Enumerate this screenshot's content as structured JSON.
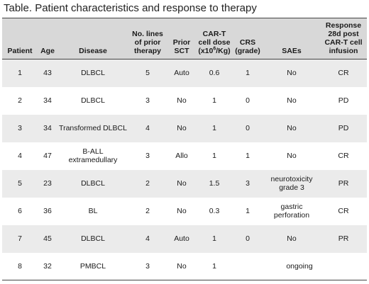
{
  "title": "Table. Patient characteristics and response to therapy",
  "headers": {
    "patient": "Patient",
    "age": "Age",
    "disease": "Disease",
    "lines": "No. lines of prior therapy",
    "prior_sct": "Prior SCT",
    "dose_pre": "CAR-T cell  dose (x10",
    "dose_sup": "6",
    "dose_post": "/Kg)",
    "crs": "CRS (grade)",
    "saes": "SAEs",
    "response": "Response 28d post CAR-T cell infusion"
  },
  "rows": [
    {
      "patient": "1",
      "age": "43",
      "disease": "DLBCL",
      "lines": "5",
      "prior_sct": "Auto",
      "dose": "0.6",
      "crs": "1",
      "saes": "No",
      "response": "CR"
    },
    {
      "patient": "2",
      "age": "34",
      "disease": "DLBCL",
      "lines": "3",
      "prior_sct": "No",
      "dose": "1",
      "crs": "0",
      "saes": "No",
      "response": "PD"
    },
    {
      "patient": "3",
      "age": "34",
      "disease": "Transformed DLBCL",
      "lines": "4",
      "prior_sct": "No",
      "dose": "1",
      "crs": "0",
      "saes": "No",
      "response": "PD"
    },
    {
      "patient": "4",
      "age": "47",
      "disease": "B-ALL extramedullary",
      "lines": "3",
      "prior_sct": "Allo",
      "dose": "1",
      "crs": "1",
      "saes": "No",
      "response": "CR"
    },
    {
      "patient": "5",
      "age": "23",
      "disease": "DLBCL",
      "lines": "2",
      "prior_sct": "No",
      "dose": "1.5",
      "crs": "3",
      "saes": "neurotoxicity grade 3",
      "response": "PR"
    },
    {
      "patient": "6",
      "age": "36",
      "disease": "BL",
      "lines": "2",
      "prior_sct": "No",
      "dose": "0.3",
      "crs": "1",
      "saes": "gastric perforation",
      "response": "CR"
    },
    {
      "patient": "7",
      "age": "45",
      "disease": "DLBCL",
      "lines": "4",
      "prior_sct": "Auto",
      "dose": "1",
      "crs": "0",
      "saes": "No",
      "response": "PR"
    }
  ],
  "last_row": {
    "patient": "8",
    "age": "32",
    "disease": "PMBCL",
    "lines": "3",
    "prior_sct": "No",
    "dose": "1",
    "status": "ongoing"
  }
}
